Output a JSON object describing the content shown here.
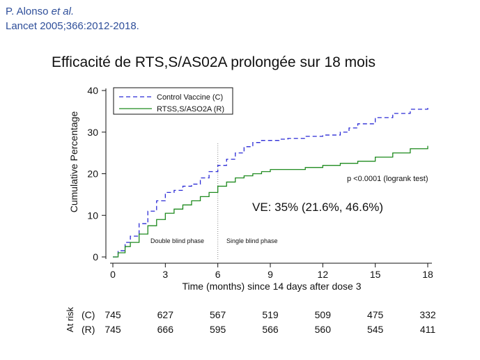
{
  "citation": {
    "authors": "P. Alonso",
    "etal": "et al.",
    "journal": "Lancet 2005;366:2012-2018."
  },
  "slide_title": "Efficacité de RTS,S/AS02A prolongée sur 18 mois",
  "chart_data": {
    "type": "line",
    "title": "Efficacité de RTS,S/AS02A prolongée sur 18 mois",
    "xlabel": "Time (months) since 14 days after dose 3",
    "ylabel": "Cumulative Percentage",
    "xlim": [
      0,
      18
    ],
    "ylim": [
      0,
      40
    ],
    "xticks": [
      0,
      3,
      6,
      9,
      12,
      15,
      18
    ],
    "yticks": [
      0,
      10,
      20,
      30,
      40
    ],
    "grid": false,
    "legend_position": "top-left",
    "series": [
      {
        "name": "Control Vaccine (C)",
        "color": "#2b2bd6",
        "style": "dashed",
        "points": [
          [
            0,
            0
          ],
          [
            0.3,
            1.5
          ],
          [
            0.7,
            3.5
          ],
          [
            1,
            5
          ],
          [
            1.5,
            8
          ],
          [
            2,
            11
          ],
          [
            2.5,
            13.5
          ],
          [
            3,
            15.5
          ],
          [
            3.5,
            16
          ],
          [
            4,
            17
          ],
          [
            4.5,
            17.5
          ],
          [
            5,
            19
          ],
          [
            5.5,
            20.5
          ],
          [
            6,
            22
          ],
          [
            6.5,
            23.5
          ],
          [
            7,
            25
          ],
          [
            7.5,
            26.5
          ],
          [
            8,
            27.5
          ],
          [
            8.5,
            28
          ],
          [
            9,
            28
          ],
          [
            9.5,
            28.3
          ],
          [
            10,
            28.5
          ],
          [
            11,
            29
          ],
          [
            12,
            29.3
          ],
          [
            13,
            30
          ],
          [
            13.5,
            31
          ],
          [
            14,
            32
          ],
          [
            15,
            33.5
          ],
          [
            16,
            34.5
          ],
          [
            17,
            35.5
          ],
          [
            18,
            36.2
          ]
        ]
      },
      {
        "name": "RTSS,S/ASO2A (R)",
        "color": "#1e8a1e",
        "style": "solid",
        "points": [
          [
            0,
            0
          ],
          [
            0.3,
            1
          ],
          [
            0.7,
            2.5
          ],
          [
            1,
            3.5
          ],
          [
            1.5,
            5.5
          ],
          [
            2,
            7.5
          ],
          [
            2.5,
            9
          ],
          [
            3,
            10.5
          ],
          [
            3.5,
            11.5
          ],
          [
            4,
            12.5
          ],
          [
            4.5,
            13.5
          ],
          [
            5,
            14.5
          ],
          [
            5.5,
            15.5
          ],
          [
            6,
            17
          ],
          [
            6.5,
            18
          ],
          [
            7,
            19
          ],
          [
            7.5,
            19.5
          ],
          [
            8,
            20
          ],
          [
            8.5,
            20.5
          ],
          [
            9,
            21
          ],
          [
            10,
            21
          ],
          [
            11,
            21.5
          ],
          [
            12,
            22
          ],
          [
            13,
            22.5
          ],
          [
            14,
            23
          ],
          [
            15,
            24
          ],
          [
            16,
            25
          ],
          [
            17,
            26
          ],
          [
            18,
            26.7
          ]
        ]
      }
    ],
    "reference_line": {
      "x": 6,
      "style": "dotted"
    },
    "annotations": {
      "phase_1": "Double blind phase",
      "phase_2": "Single blind phase",
      "pvalue": "p <0.0001 (logrank test)",
      "ve": "VE: 35% (21.6%, 46.6%)"
    },
    "at_risk": {
      "label": "At risk",
      "months": [
        0,
        3,
        6,
        9,
        12,
        15,
        18
      ],
      "rows": [
        {
          "group": "(C)",
          "values": [
            745,
            627,
            567,
            519,
            509,
            475,
            332
          ]
        },
        {
          "group": "(R)",
          "values": [
            745,
            666,
            595,
            566,
            560,
            545,
            411
          ]
        }
      ]
    }
  }
}
